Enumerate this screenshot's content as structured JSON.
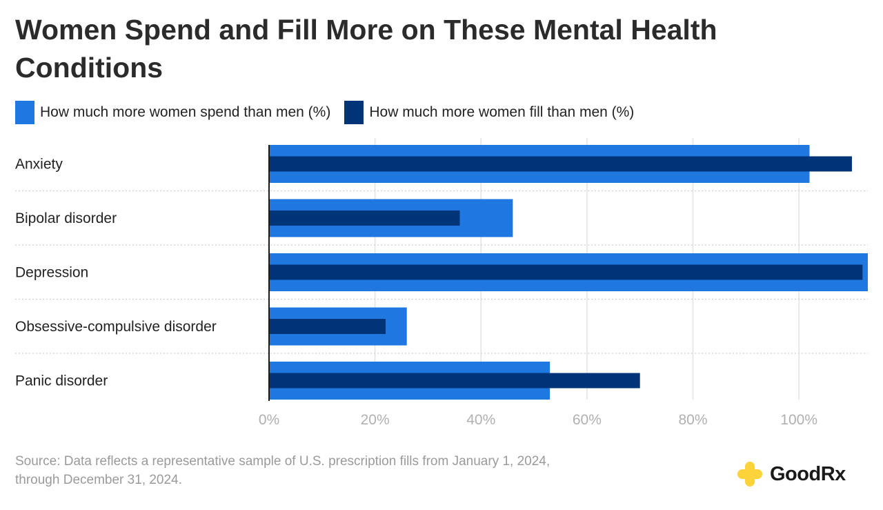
{
  "chart_data": {
    "type": "bar",
    "orientation": "horizontal",
    "title": "Women Spend and Fill More on These Mental Health Conditions",
    "categories": [
      "Anxiety",
      "Bipolar disorder",
      "Depression",
      "Obsessive-compulsive disorder",
      "Panic disorder"
    ],
    "series": [
      {
        "name": "How much more women spend than men (%)",
        "color": "#1f77e0",
        "values": [
          102,
          46,
          113,
          26,
          53
        ]
      },
      {
        "name": "How much more women fill than men (%)",
        "color": "#003478",
        "values": [
          110,
          36,
          112,
          22,
          70
        ]
      }
    ],
    "xlim": [
      0,
      113
    ],
    "xticks": [
      0,
      20,
      40,
      60,
      80,
      100
    ],
    "xtick_labels": [
      "0%",
      "20%",
      "40%",
      "60%",
      "80%",
      "100%"
    ],
    "xlabel": "",
    "ylabel": "",
    "grid": true,
    "legend": "top-left"
  },
  "source": {
    "line1": "Source: Data reflects a representative sample of U.S. prescription fills from January 1, 2024,",
    "line2": "through December 31, 2024."
  },
  "brand": {
    "name": "GoodRx",
    "logo_color": "#fcd33a"
  }
}
